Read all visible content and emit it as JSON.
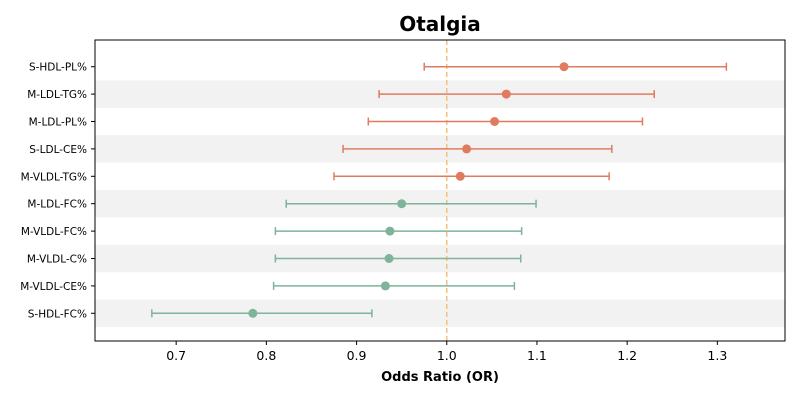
{
  "chart_data": {
    "type": "scatter",
    "title": "Otalgia",
    "xlabel": "Odds Ratio (OR)",
    "ylabel": "",
    "xlim": [
      0.61,
      1.375
    ],
    "xticks": [
      "0.7",
      "0.8",
      "0.9",
      "1.0",
      "1.1",
      "1.2",
      "1.3"
    ],
    "reference_line": 1.0,
    "colors": {
      "risk": "#e07b5f",
      "protective": "#7fb39a",
      "reference": "#f5c27a",
      "band": "#f2f2f2"
    },
    "rows": [
      {
        "label": "S-HDL-PL%",
        "or": 1.13,
        "lower": 0.975,
        "upper": 1.31,
        "group": "risk"
      },
      {
        "label": "M-LDL-TG%",
        "or": 1.066,
        "lower": 0.925,
        "upper": 1.23,
        "group": "risk"
      },
      {
        "label": "M-LDL-PL%",
        "or": 1.053,
        "lower": 0.913,
        "upper": 1.217,
        "group": "risk"
      },
      {
        "label": "S-LDL-CE%",
        "or": 1.022,
        "lower": 0.885,
        "upper": 1.183,
        "group": "risk"
      },
      {
        "label": "M-VLDL-TG%",
        "or": 1.015,
        "lower": 0.875,
        "upper": 1.18,
        "group": "risk"
      },
      {
        "label": "M-LDL-FC%",
        "or": 0.95,
        "lower": 0.822,
        "upper": 1.099,
        "group": "protective"
      },
      {
        "label": "M-VLDL-FC%",
        "or": 0.937,
        "lower": 0.81,
        "upper": 1.083,
        "group": "protective"
      },
      {
        "label": "M-VLDL-C%",
        "or": 0.936,
        "lower": 0.81,
        "upper": 1.082,
        "group": "protective"
      },
      {
        "label": "M-VLDL-CE%",
        "or": 0.932,
        "lower": 0.808,
        "upper": 1.075,
        "group": "protective"
      },
      {
        "label": "S-HDL-FC%",
        "or": 0.785,
        "lower": 0.673,
        "upper": 0.917,
        "group": "protective"
      }
    ]
  }
}
